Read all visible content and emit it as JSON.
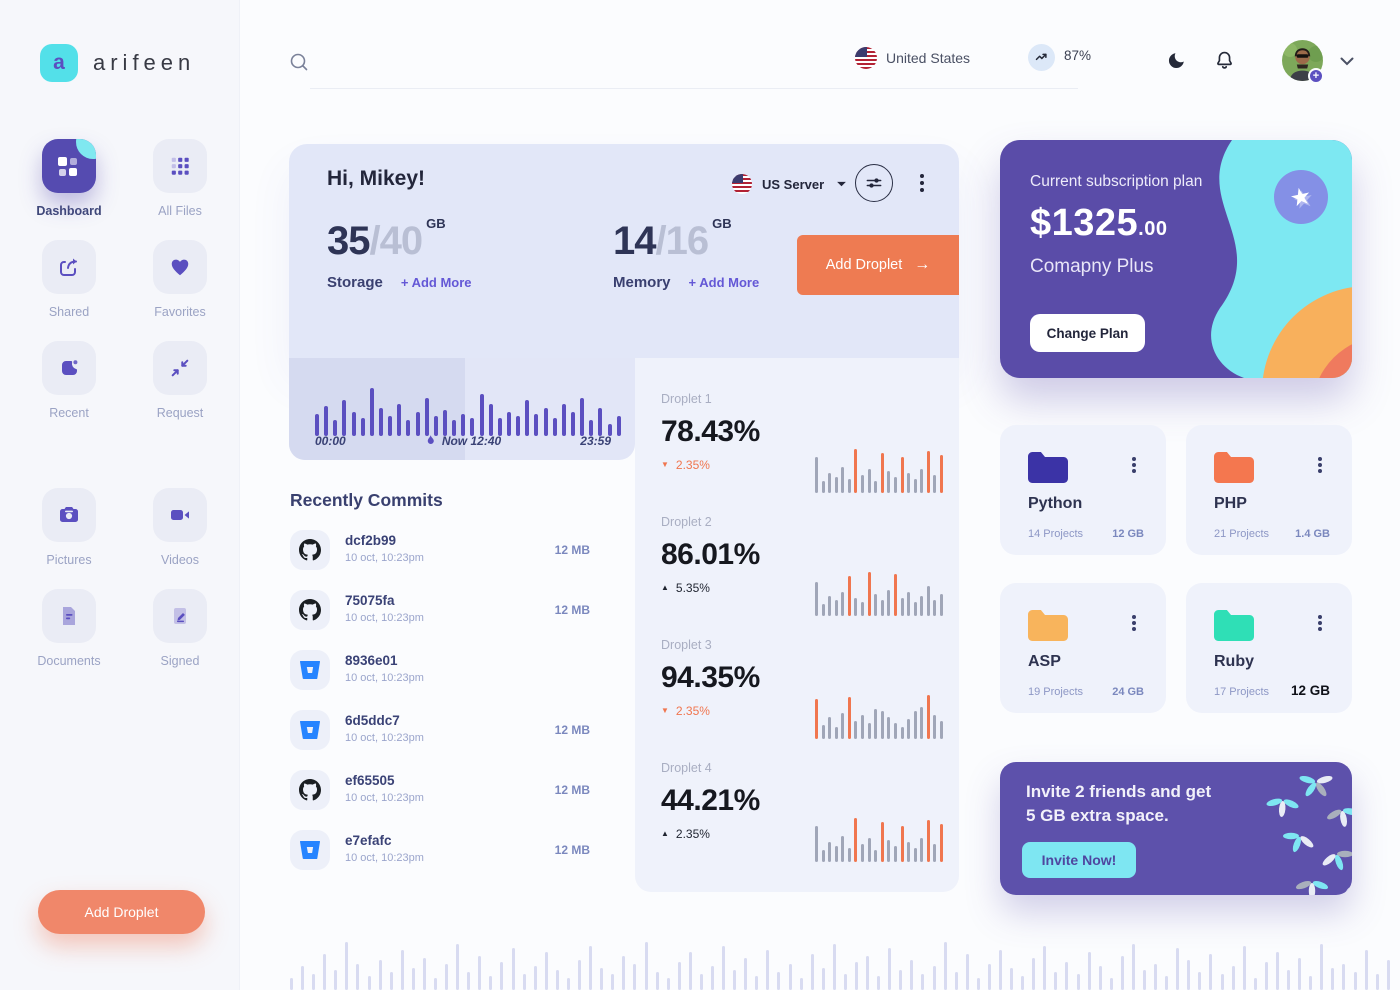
{
  "brand": {
    "name": "arifeen",
    "monogram": "a"
  },
  "header": {
    "country": "United States",
    "usage_percent": "87%"
  },
  "sidebar": {
    "items": [
      {
        "label": "Dashboard",
        "icon": "dashboard-grid-icon",
        "active": true
      },
      {
        "label": "All Files",
        "icon": "grid-icon",
        "active": false
      },
      {
        "label": "Shared",
        "icon": "share-arrow-icon",
        "active": false
      },
      {
        "label": "Favorites",
        "icon": "heart-icon",
        "active": false
      },
      {
        "label": "Recent",
        "icon": "recent-file-icon",
        "active": false
      },
      {
        "label": "Request",
        "icon": "collapse-arrows-icon",
        "active": false
      },
      {
        "label": "Pictures",
        "icon": "camera-icon",
        "active": false
      },
      {
        "label": "Videos",
        "icon": "video-camera-icon",
        "active": false
      },
      {
        "label": "Documents",
        "icon": "document-icon",
        "active": false
      },
      {
        "label": "Signed",
        "icon": "signed-document-icon",
        "active": false
      }
    ],
    "add_droplet": "Add Droplet"
  },
  "greeting": {
    "title": "Hi, Mikey!",
    "server": "US Server",
    "add_droplet": "Add Droplet",
    "storage": {
      "used": "35",
      "total": "/40",
      "unit": "GB",
      "label": "Storage",
      "add_more": "+ Add More"
    },
    "memory": {
      "used": "14",
      "total": "/16",
      "unit": "GB",
      "label": "Memory",
      "add_more": "+ Add More"
    }
  },
  "time_chart": {
    "start": "00:00",
    "now_label": "Now 12:40",
    "end": "23:59",
    "bars": [
      22,
      30,
      16,
      36,
      24,
      18,
      48,
      28,
      20,
      32,
      16,
      24,
      38,
      20,
      26,
      16,
      22,
      18,
      42,
      32,
      18,
      24,
      20,
      36,
      22,
      28,
      18,
      32,
      24,
      38,
      16,
      28,
      12,
      20
    ]
  },
  "commits": {
    "title": "Recently Commits",
    "items": [
      {
        "hash": "dcf2b99",
        "date": "10 oct, 10:23pm",
        "size": "12 MB",
        "source": "github"
      },
      {
        "hash": "75075fa",
        "date": "10 oct, 10:23pm",
        "size": "12 MB",
        "source": "github"
      },
      {
        "hash": "8936e01",
        "date": "10 oct, 10:23pm",
        "size": "",
        "source": "bitbucket"
      },
      {
        "hash": "6d5ddc7",
        "date": "10 oct, 10:23pm",
        "size": "12 MB",
        "source": "bitbucket"
      },
      {
        "hash": "ef65505",
        "date": "10 oct, 10:23pm",
        "size": "12 MB",
        "source": "github"
      },
      {
        "hash": "e7efafc",
        "date": "10 oct, 10:23pm",
        "size": "12 MB",
        "source": "bitbucket"
      }
    ]
  },
  "droplets": [
    {
      "name": "Droplet 1",
      "value": "78.43%",
      "delta": "2.35%",
      "direction": "down",
      "bars": [
        36,
        12,
        20,
        16,
        26,
        14,
        44,
        18,
        24,
        12,
        40,
        22,
        16,
        36,
        20,
        14,
        24,
        42,
        18,
        38
      ],
      "orange": [
        6,
        10,
        13,
        17,
        19
      ]
    },
    {
      "name": "Droplet 2",
      "value": "86.01%",
      "delta": "5.35%",
      "direction": "up",
      "bars": [
        34,
        12,
        20,
        16,
        24,
        40,
        18,
        14,
        44,
        22,
        16,
        26,
        42,
        18,
        24,
        14,
        20,
        30,
        16,
        22
      ],
      "orange": [
        5,
        8,
        12
      ]
    },
    {
      "name": "Droplet 3",
      "value": "94.35%",
      "delta": "2.35%",
      "direction": "down",
      "bars": [
        40,
        14,
        22,
        12,
        26,
        42,
        18,
        24,
        16,
        30,
        28,
        22,
        16,
        12,
        20,
        28,
        32,
        44,
        24,
        18
      ],
      "orange": [
        0,
        5,
        17
      ]
    },
    {
      "name": "Droplet 4",
      "value": "44.21%",
      "delta": "2.35%",
      "direction": "up",
      "bars": [
        36,
        12,
        20,
        16,
        26,
        14,
        44,
        18,
        24,
        12,
        40,
        22,
        16,
        36,
        20,
        14,
        24,
        42,
        18,
        38
      ],
      "orange": [
        6,
        10,
        13,
        17,
        19
      ]
    }
  ],
  "subscription": {
    "label": "Current subscription plan",
    "price": "$1325",
    "cents": ".00",
    "plan": "Comapny Plus",
    "button": "Change Plan"
  },
  "folders": [
    {
      "name": "Python",
      "projects": "14 Projects",
      "size": "12 GB",
      "color": "#3B33A6",
      "size_emphasis": false
    },
    {
      "name": "PHP",
      "projects": "21 Projects",
      "size": "1.4 GB",
      "color": "#F4774F",
      "size_emphasis": false
    },
    {
      "name": "ASP",
      "projects": "19 Projects",
      "size": "24 GB",
      "color": "#F8B45C",
      "size_emphasis": false
    },
    {
      "name": "Ruby",
      "projects": "17 Projects",
      "size": "12 GB",
      "color": "#2FDFB6",
      "size_emphasis": true
    }
  ],
  "invite": {
    "line1": "Invite 2 friends and get",
    "line2": "5 GB extra space.",
    "button": "Invite Now!"
  },
  "bottom_chart": {
    "bars": [
      12,
      24,
      16,
      36,
      20,
      48,
      26,
      14,
      30,
      18,
      40,
      22,
      32,
      12,
      26,
      46,
      18,
      34,
      14,
      28,
      42,
      16,
      24,
      38,
      20,
      12,
      30,
      44,
      22,
      16,
      34,
      26,
      48,
      18,
      12,
      28,
      38,
      16,
      24,
      44,
      20,
      32,
      14,
      40,
      18,
      26,
      12,
      36,
      22,
      46,
      16,
      28,
      34,
      14,
      42,
      20,
      30,
      16,
      24,
      48,
      18,
      36,
      12,
      26,
      40,
      22,
      14,
      32,
      44,
      18,
      28,
      16,
      38,
      24,
      12,
      34,
      46,
      20,
      26,
      14,
      42,
      30,
      18,
      36,
      16,
      24,
      44,
      12,
      28,
      38,
      20,
      32,
      14,
      46,
      22,
      26,
      18,
      40,
      16,
      30
    ]
  },
  "colors": {
    "accent_orange": "#EE7B52",
    "primary_purple": "#5B4FC0",
    "cyan": "#7EE6F2",
    "card_lavender": "#E2E7F8",
    "panel_lavender": "#EFF2FB",
    "bar_gray": "#A0A6B8",
    "bar_orange": "#F0764F",
    "bar_lavender": "#D8DBF1",
    "subscription_purple": "#5A4CA8",
    "invite_purple": "#5D51AB"
  }
}
